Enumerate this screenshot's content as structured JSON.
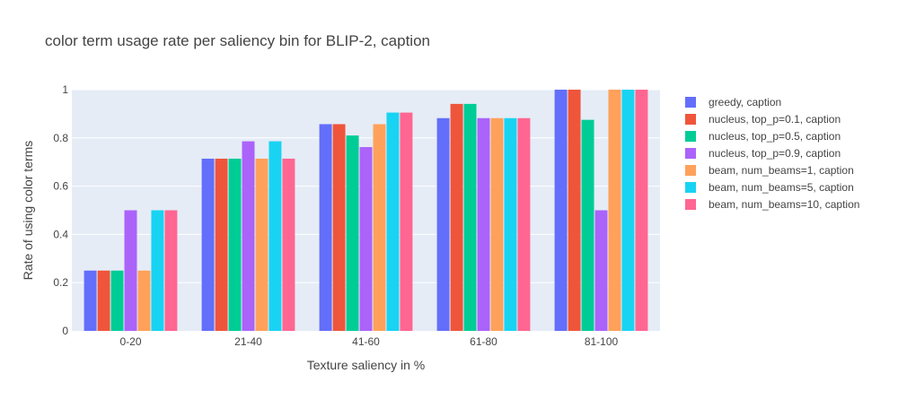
{
  "chart_data": {
    "type": "bar",
    "title": "color term usage rate per saliency bin for BLIP-2, caption",
    "xlabel": "Texture saliency in %",
    "ylabel": "Rate of using color terms",
    "categories": [
      "0-20",
      "21-40",
      "41-60",
      "61-80",
      "81-100"
    ],
    "ylim": [
      0,
      1
    ],
    "yticks": [
      0,
      0.2,
      0.4,
      0.6,
      0.8,
      1
    ],
    "ytick_labels": [
      "0",
      "0.2",
      "0.4",
      "0.6",
      "0.8",
      "1"
    ],
    "grid": true,
    "legend_position": "right",
    "series": [
      {
        "name": "greedy, caption",
        "color": "#636efa",
        "values": [
          0.25,
          0.714,
          0.857,
          0.882,
          1.0
        ]
      },
      {
        "name": "nucleus, top_p=0.1, caption",
        "color": "#ef553b",
        "values": [
          0.25,
          0.714,
          0.857,
          0.941,
          1.0
        ]
      },
      {
        "name": "nucleus, top_p=0.5, caption",
        "color": "#00cc96",
        "values": [
          0.25,
          0.714,
          0.81,
          0.941,
          0.875
        ]
      },
      {
        "name": "nucleus, top_p=0.9, caption",
        "color": "#ab63fa",
        "values": [
          0.5,
          0.786,
          0.762,
          0.882,
          0.5
        ]
      },
      {
        "name": "beam, num_beams=1, caption",
        "color": "#ffa15a",
        "values": [
          0.25,
          0.714,
          0.857,
          0.882,
          1.0
        ]
      },
      {
        "name": "beam, num_beams=5, caption",
        "color": "#19d3f3",
        "values": [
          0.5,
          0.786,
          0.905,
          0.882,
          1.0
        ]
      },
      {
        "name": "beam, num_beams=10, caption",
        "color": "#ff6692",
        "values": [
          0.5,
          0.714,
          0.905,
          0.882,
          1.0
        ]
      }
    ],
    "colors": {
      "plot_background": "#e5ecf6",
      "grid": "#ffffff",
      "text": "#444444"
    }
  }
}
